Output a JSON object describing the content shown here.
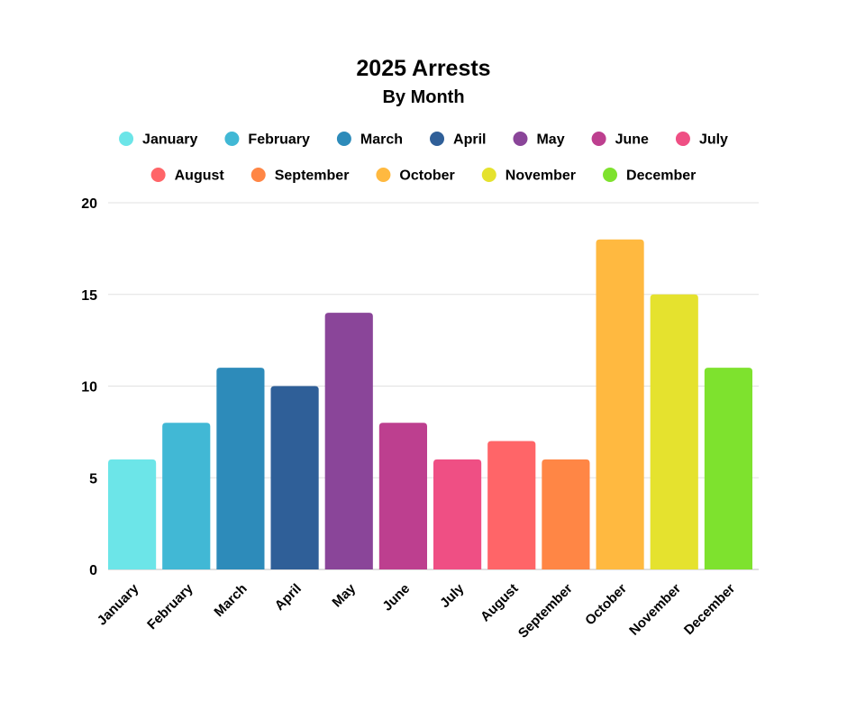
{
  "chart_data": {
    "type": "bar",
    "title": "2025 Arrests",
    "subtitle": "By Month",
    "xlabel": "",
    "ylabel": "",
    "ylim": [
      0,
      20
    ],
    "yticks": [
      0,
      5,
      10,
      15,
      20
    ],
    "grid": true,
    "legend_position": "top",
    "categories": [
      "January",
      "February",
      "March",
      "April",
      "May",
      "June",
      "July",
      "August",
      "September",
      "October",
      "November",
      "December"
    ],
    "values": [
      6,
      8,
      11,
      10,
      14,
      8,
      6,
      7,
      6,
      18,
      15,
      11
    ],
    "colors": [
      "#6ce5e8",
      "#41b8d5",
      "#2d8bba",
      "#2f5f98",
      "#8a4599",
      "#bd3f8f",
      "#ef4f84",
      "#ff6568",
      "#ff8645",
      "#ffb940",
      "#e5e22e",
      "#7ee22e"
    ]
  }
}
